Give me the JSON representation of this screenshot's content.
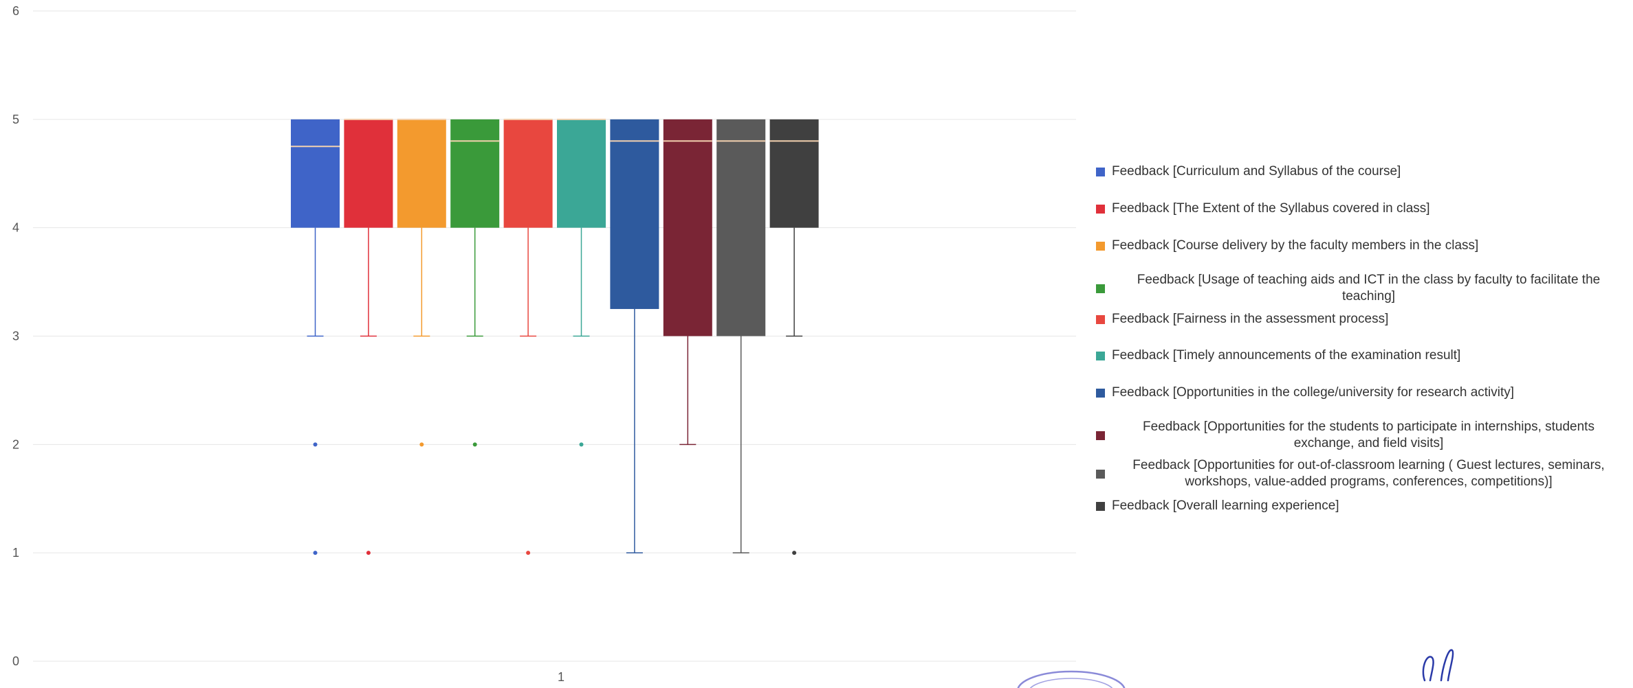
{
  "chart_data": {
    "type": "box",
    "x_tick_labels": [
      "1"
    ],
    "y_ticks": [
      0,
      1,
      2,
      3,
      4,
      5,
      6
    ],
    "ylim": [
      0,
      6
    ],
    "grid": true,
    "legend_position": "right",
    "series": [
      {
        "name": "Feedback [Curriculum and Syllabus of the course]",
        "color": "#3f64c8",
        "min": 3,
        "q1": 4,
        "median": 4.75,
        "q3": 5,
        "max": 5,
        "outliers": [
          2,
          1
        ]
      },
      {
        "name": "Feedback [The Extent of the Syllabus covered in class]",
        "color": "#e0303a",
        "min": 3,
        "q1": 4,
        "median": 5,
        "q3": 5,
        "max": 5,
        "outliers": [
          1
        ]
      },
      {
        "name": "Feedback [Course delivery by the faculty members in the class]",
        "color": "#f39a2e",
        "min": 3,
        "q1": 4,
        "median": 5,
        "q3": 5,
        "max": 5,
        "outliers": [
          2
        ]
      },
      {
        "name": "Feedback [Usage of teaching aids and ICT in the class by faculty to facilitate the teaching]",
        "color": "#3a9a3a",
        "min": 3,
        "q1": 4,
        "median": 4.8,
        "q3": 5,
        "max": 5,
        "outliers": [
          2
        ]
      },
      {
        "name": "Feedback [Fairness in the assessment process]",
        "color": "#e8473f",
        "min": 3,
        "q1": 4,
        "median": 5,
        "q3": 5,
        "max": 5,
        "outliers": [
          1
        ]
      },
      {
        "name": "Feedback [Timely announcements of the examination result]",
        "color": "#3ba796",
        "min": 3,
        "q1": 4,
        "median": 5,
        "q3": 5,
        "max": 5,
        "outliers": [
          2
        ]
      },
      {
        "name": "Feedback [Opportunities in the college/university for research activity]",
        "color": "#2e5a9e",
        "min": 1,
        "q1": 3.25,
        "median": 4.8,
        "q3": 5,
        "max": 5,
        "outliers": []
      },
      {
        "name": "Feedback [Opportunities for the students to participate in internships, students exchange, and field visits]",
        "color": "#7a2535",
        "min": 2,
        "q1": 3,
        "median": 4.8,
        "q3": 5,
        "max": 5,
        "outliers": []
      },
      {
        "name": "Feedback [Opportunities for out-of-classroom learning ( Guest lectures, seminars, workshops, value-added programs, conferences, competitions)]",
        "color": "#5a5a5a",
        "min": 1,
        "q1": 3,
        "median": 4.8,
        "q3": 5,
        "max": 5,
        "outliers": []
      },
      {
        "name": "Feedback [Overall learning experience]",
        "color": "#404040",
        "min": 3,
        "q1": 4,
        "median": 4.8,
        "q3": 5,
        "max": 5,
        "outliers": [
          1
        ]
      }
    ]
  }
}
